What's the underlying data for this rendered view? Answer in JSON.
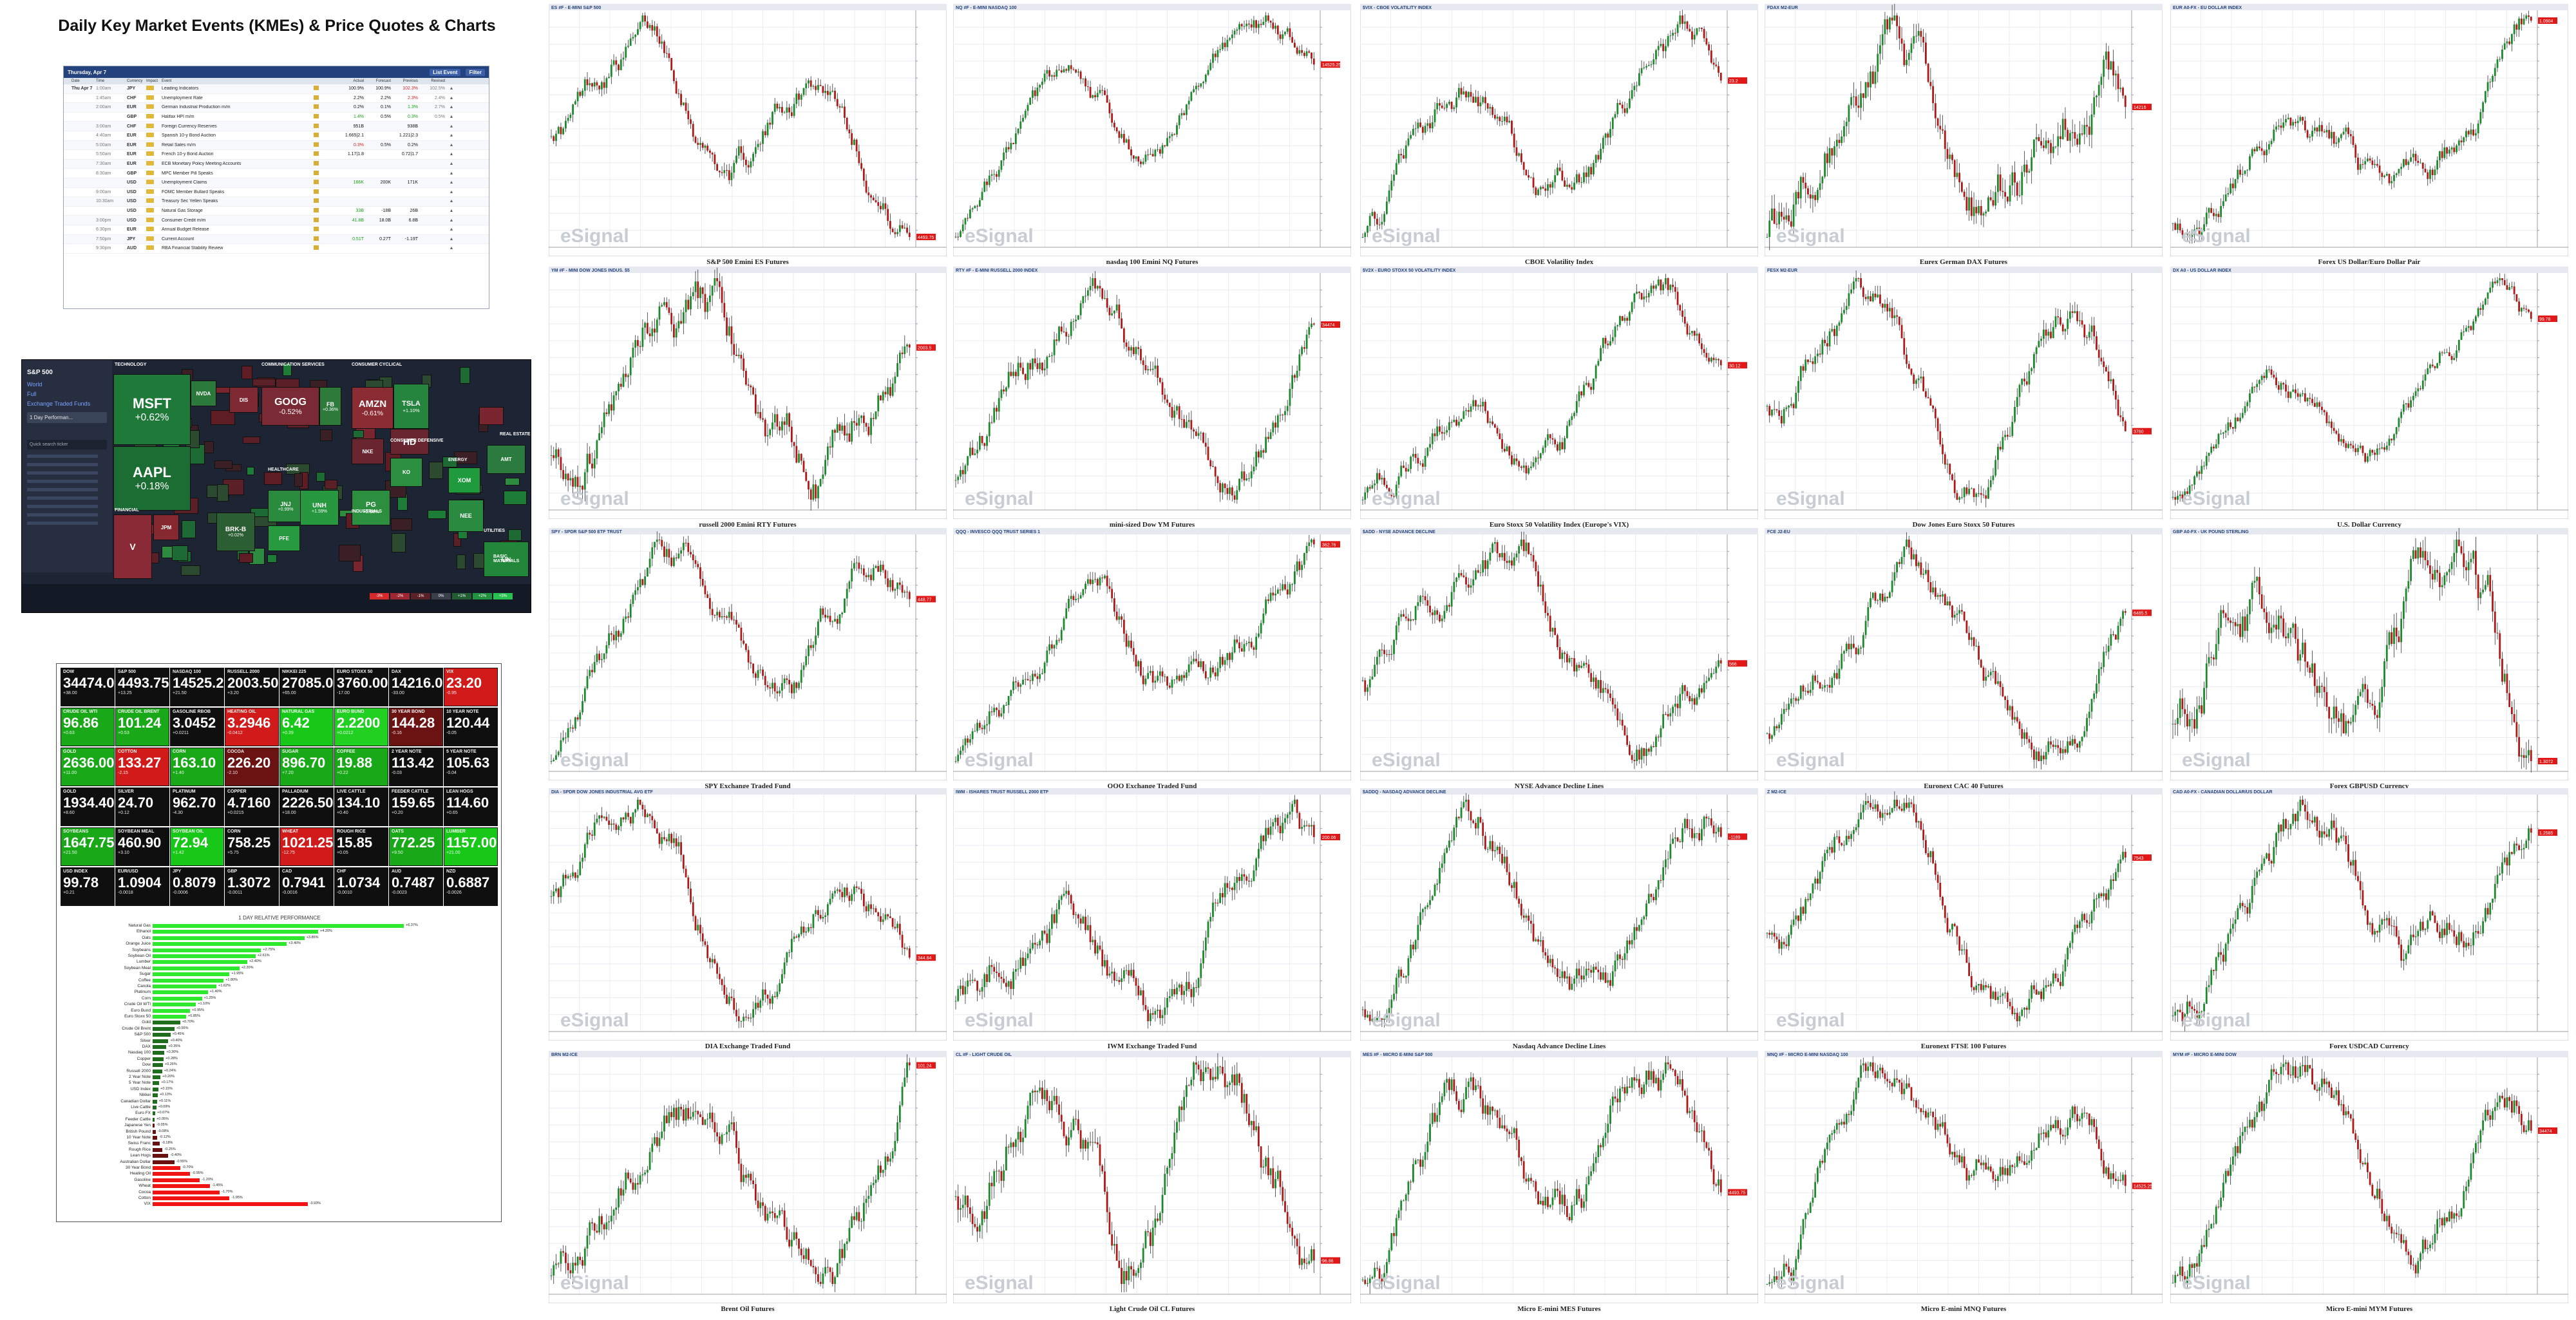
{
  "page": {
    "title": "Daily Key Market Events (KMEs) & Price Quotes & Charts"
  },
  "calendar": {
    "header_date": "Thursday, Apr 7",
    "header_buttons": [
      "List Event",
      "Filter"
    ],
    "columns": [
      "Date",
      "Time",
      "Currency",
      "Impact",
      "Event",
      "",
      "Actual",
      "Forecast",
      "Previous",
      "Revised"
    ],
    "day_label": "Thu Apr 7",
    "rows": [
      {
        "time": "1:00am",
        "cur": "JPY",
        "event": "Leading Indicators",
        "act": "100.9%",
        "fc": "100.9%",
        "prev": "102.3%",
        "rev": "102.5%",
        "act_c": "",
        "prev_c": "neg"
      },
      {
        "time": "1:45am",
        "cur": "CHF",
        "event": "Unemployment Rate",
        "act": "2.2%",
        "fc": "2.2%",
        "prev": "2.3%",
        "rev": "2.4%",
        "act_c": "",
        "prev_c": "neg"
      },
      {
        "time": "2:00am",
        "cur": "EUR",
        "event": "German Industrial Production m/m",
        "act": "0.2%",
        "fc": "0.1%",
        "prev": "1.3%",
        "rev": "2.7%",
        "act_c": "",
        "prev_c": "pos"
      },
      {
        "time": "",
        "cur": "GBP",
        "event": "Halifax HPI m/m",
        "act": "1.4%",
        "fc": "0.5%",
        "prev": "0.3%",
        "rev": "0.5%",
        "act_c": "pos",
        "prev_c": "pos"
      },
      {
        "time": "3:00am",
        "cur": "CHF",
        "event": "Foreign Currency Reserves",
        "act": "951B",
        "fc": "",
        "prev": "938B",
        "rev": "",
        "act_c": "",
        "prev_c": ""
      },
      {
        "time": "4:40am",
        "cur": "EUR",
        "event": "Spanish 10-y Bond Auction",
        "act": "1.665|2.1",
        "fc": "",
        "prev": "1.221|2.3",
        "rev": "",
        "act_c": "",
        "prev_c": ""
      },
      {
        "time": "5:00am",
        "cur": "EUR",
        "event": "Retail Sales m/m",
        "act": "0.3%",
        "fc": "0.5%",
        "prev": "0.2%",
        "rev": "",
        "act_c": "neg",
        "prev_c": ""
      },
      {
        "time": "5:50am",
        "cur": "EUR",
        "event": "French 10-y Bond Auction",
        "act": "1.17|1.8",
        "fc": "",
        "prev": "0.72|1.7",
        "rev": "",
        "act_c": "",
        "prev_c": ""
      },
      {
        "time": "7:30am",
        "cur": "EUR",
        "event": "ECB Monetary Policy Meeting Accounts",
        "act": "",
        "fc": "",
        "prev": "",
        "rev": "",
        "act_c": "",
        "prev_c": ""
      },
      {
        "time": "8:30am",
        "cur": "GBP",
        "event": "MPC Member Pill Speaks",
        "act": "",
        "fc": "",
        "prev": "",
        "rev": "",
        "act_c": "",
        "prev_c": ""
      },
      {
        "time": "",
        "cur": "USD",
        "event": "Unemployment Claims",
        "act": "166K",
        "fc": "200K",
        "prev": "171K",
        "rev": "",
        "act_c": "pos",
        "prev_c": ""
      },
      {
        "time": "9:00am",
        "cur": "USD",
        "event": "FOMC Member Bullard Speaks",
        "act": "",
        "fc": "",
        "prev": "",
        "rev": "",
        "act_c": "",
        "prev_c": ""
      },
      {
        "time": "10:30am",
        "cur": "USD",
        "event": "Treasury Sec Yellen Speaks",
        "act": "",
        "fc": "",
        "prev": "",
        "rev": "",
        "act_c": "",
        "prev_c": ""
      },
      {
        "time": "",
        "cur": "USD",
        "event": "Natural Gas Storage",
        "act": "33B",
        "fc": "-18B",
        "prev": "26B",
        "rev": "",
        "act_c": "pos",
        "prev_c": ""
      },
      {
        "time": "3:00pm",
        "cur": "USD",
        "event": "Consumer Credit m/m",
        "act": "41.8B",
        "fc": "18.0B",
        "prev": "6.8B",
        "rev": "",
        "act_c": "pos",
        "prev_c": ""
      },
      {
        "time": "6:30pm",
        "cur": "EUR",
        "event": "Annual Budget Release",
        "act": "",
        "fc": "",
        "prev": "",
        "rev": "",
        "act_c": "",
        "prev_c": ""
      },
      {
        "time": "7:50pm",
        "cur": "JPY",
        "event": "Current Account",
        "act": "0.51T",
        "fc": "0.27T",
        "prev": "-1.19T",
        "rev": "",
        "act_c": "pos",
        "prev_c": ""
      },
      {
        "time": "9:30pm",
        "cur": "AUD",
        "event": "RBA Financial Stability Review",
        "act": "",
        "fc": "",
        "prev": "",
        "rev": "",
        "act_c": "",
        "prev_c": ""
      }
    ]
  },
  "heatmap": {
    "sidebar_title": "S&P 500",
    "sidebar_links": [
      "World",
      "Full",
      "Exchange Traded Funds"
    ],
    "sidebar_select": "1 Day Performan...",
    "search_placeholder": "Quick search ticker",
    "sectors": [
      "TECHNOLOGY",
      "COMMUNICATION SERVICES",
      "CONSUMER CYCLICAL",
      "FINANCIAL",
      "HEALTHCARE",
      "CONSUMER DEFENSIVE",
      "INDUSTRIALS",
      "REAL ESTATE",
      "ENERGY",
      "UTILITIES",
      "BASIC MATERIALS"
    ],
    "tiles": [
      {
        "sym": "MSFT",
        "chg": "+0.62%"
      },
      {
        "sym": "AAPL",
        "chg": "+0.18%"
      },
      {
        "sym": "GOOG",
        "chg": "-0.52%"
      },
      {
        "sym": "FB",
        "chg": "+0.36%"
      },
      {
        "sym": "AMZN",
        "chg": "-0.61%"
      },
      {
        "sym": "TSLA",
        "chg": "+1.10%"
      },
      {
        "sym": "HD",
        "chg": ""
      },
      {
        "sym": "V",
        "chg": ""
      },
      {
        "sym": "BRK-B",
        "chg": "+0.02%"
      },
      {
        "sym": "JNJ",
        "chg": "+0.99%"
      },
      {
        "sym": "UNH",
        "chg": "+1.59%"
      },
      {
        "sym": "PG",
        "chg": "+0.68%"
      },
      {
        "sym": "XOM",
        "chg": ""
      },
      {
        "sym": "NEE",
        "chg": ""
      },
      {
        "sym": "LIN",
        "chg": ""
      },
      {
        "sym": "JPM",
        "chg": ""
      },
      {
        "sym": "NVDA",
        "chg": ""
      },
      {
        "sym": "DIS",
        "chg": ""
      },
      {
        "sym": "NKE",
        "chg": ""
      },
      {
        "sym": "KO",
        "chg": ""
      },
      {
        "sym": "PFE",
        "chg": ""
      },
      {
        "sym": "AMT",
        "chg": ""
      }
    ],
    "legend": [
      "-3%",
      "-2%",
      "-1%",
      "0%",
      "+1%",
      "+2%",
      "+3%"
    ]
  },
  "board": {
    "rows": [
      [
        {
          "name": "DOW",
          "val": "34474.00",
          "chg": "+38.00",
          "color": "#0f0f0f"
        },
        {
          "name": "S&P 500",
          "val": "4493.75",
          "chg": "+13.25",
          "color": "#0f0f0f"
        },
        {
          "name": "NASDAQ 100",
          "val": "14525.25",
          "chg": "+21.50",
          "color": "#0f0f0f"
        },
        {
          "name": "RUSSELL 2000",
          "val": "2003.50",
          "chg": "+3.20",
          "color": "#0f0f0f"
        },
        {
          "name": "NIKKEI 225",
          "val": "27085.00",
          "chg": "+65.00",
          "color": "#0f0f0f"
        },
        {
          "name": "EURO STOXX 50",
          "val": "3760.00",
          "chg": "-17.00",
          "color": "#0f0f0f"
        },
        {
          "name": "DAX",
          "val": "14216.00",
          "chg": "-33.00",
          "color": "#0f0f0f"
        },
        {
          "name": "VIX",
          "val": "23.20",
          "chg": "-0.95",
          "color": "#d11a1a"
        }
      ],
      [
        {
          "name": "CRUDE OIL WTI",
          "val": "96.86",
          "chg": "+0.63",
          "color": "#18a818"
        },
        {
          "name": "CRUDE OIL BRENT",
          "val": "101.24",
          "chg": "+0.53",
          "color": "#18a818"
        },
        {
          "name": "GASOLINE RBOB",
          "val": "3.0452",
          "chg": "+0.0211",
          "color": "#0f0f0f"
        },
        {
          "name": "HEATING OIL",
          "val": "3.2946",
          "chg": "-0.0412",
          "color": "#d11a1a"
        },
        {
          "name": "NATURAL GAS",
          "val": "6.42",
          "chg": "+0.39",
          "color": "#18c818"
        },
        {
          "name": "EURO BUND",
          "val": "2.2200",
          "chg": "+0.0212",
          "color": "#22d022"
        },
        {
          "name": "30 YEAR BOND",
          "val": "144.28",
          "chg": "-0.16",
          "color": "#6b1212"
        },
        {
          "name": "10 YEAR NOTE",
          "val": "120.44",
          "chg": "-0.05",
          "color": "#0f0f0f"
        }
      ],
      [
        {
          "name": "GOLD",
          "val": "2636.00",
          "chg": "+11.00",
          "color": "#18a818"
        },
        {
          "name": "COTTON",
          "val": "133.27",
          "chg": "-2.15",
          "color": "#d11a1a"
        },
        {
          "name": "CORN",
          "val": "163.10",
          "chg": "+1.40",
          "color": "#18a818"
        },
        {
          "name": "COCOA",
          "val": "226.20",
          "chg": "-2.10",
          "color": "#6b1212"
        },
        {
          "name": "SUGAR",
          "val": "896.70",
          "chg": "+7.20",
          "color": "#18a818"
        },
        {
          "name": "COFFEE",
          "val": "19.88",
          "chg": "+0.22",
          "color": "#18a818"
        },
        {
          "name": "2 YEAR NOTE",
          "val": "113.42",
          "chg": "-0.03",
          "color": "#0f0f0f"
        },
        {
          "name": "5 YEAR NOTE",
          "val": "105.63",
          "chg": "-0.04",
          "color": "#0f0f0f"
        }
      ],
      [
        {
          "name": "GOLD",
          "val": "1934.40",
          "chg": "+8.60",
          "color": "#0f0f0f"
        },
        {
          "name": "SILVER",
          "val": "24.70",
          "chg": "+0.12",
          "color": "#0f0f0f"
        },
        {
          "name": "PLATINUM",
          "val": "962.70",
          "chg": "-4.30",
          "color": "#0f0f0f"
        },
        {
          "name": "COPPER",
          "val": "4.7160",
          "chg": "+0.0215",
          "color": "#0f0f0f"
        },
        {
          "name": "PALLADIUM",
          "val": "2226.50",
          "chg": "+18.00",
          "color": "#0f0f0f"
        },
        {
          "name": "LIVE CATTLE",
          "val": "134.10",
          "chg": "+0.40",
          "color": "#0f0f0f"
        },
        {
          "name": "FEEDER CATTLE",
          "val": "159.65",
          "chg": "+0.20",
          "color": "#0f0f0f"
        },
        {
          "name": "LEAN HOGS",
          "val": "114.60",
          "chg": "+0.65",
          "color": "#0f0f0f"
        }
      ],
      [
        {
          "name": "SOYBEANS",
          "val": "1647.75",
          "chg": "+21.50",
          "color": "#18a818"
        },
        {
          "name": "SOYBEAN MEAL",
          "val": "460.90",
          "chg": "+3.10",
          "color": "#0f0f0f"
        },
        {
          "name": "SOYBEAN OIL",
          "val": "72.94",
          "chg": "+1.42",
          "color": "#18c818"
        },
        {
          "name": "CORN",
          "val": "758.25",
          "chg": "+5.75",
          "color": "#0f0f0f"
        },
        {
          "name": "WHEAT",
          "val": "1021.25",
          "chg": "-12.75",
          "color": "#d11a1a"
        },
        {
          "name": "ROUGH RICE",
          "val": "15.85",
          "chg": "+0.05",
          "color": "#0f0f0f"
        },
        {
          "name": "OATS",
          "val": "772.25",
          "chg": "+9.50",
          "color": "#18a818"
        },
        {
          "name": "LUMBER",
          "val": "1157.00",
          "chg": "+21.00",
          "color": "#18c818"
        }
      ],
      [
        {
          "name": "USD INDEX",
          "val": "99.78",
          "chg": "+0.21",
          "color": "#0f0f0f"
        },
        {
          "name": "EUR/USD",
          "val": "1.0904",
          "chg": "-0.0018",
          "color": "#0f0f0f"
        },
        {
          "name": "JPY",
          "val": "0.8079",
          "chg": "-0.0006",
          "color": "#0f0f0f"
        },
        {
          "name": "GBP",
          "val": "1.3072",
          "chg": "-0.0011",
          "color": "#0f0f0f"
        },
        {
          "name": "CAD",
          "val": "0.7941",
          "chg": "-0.0016",
          "color": "#0f0f0f"
        },
        {
          "name": "CHF",
          "val": "1.0734",
          "chg": "-0.0010",
          "color": "#0f0f0f"
        },
        {
          "name": "AUD",
          "val": "0.7487",
          "chg": "-0.0023",
          "color": "#0f0f0f"
        },
        {
          "name": "NZD",
          "val": "0.6887",
          "chg": "-0.0026",
          "color": "#0f0f0f"
        }
      ]
    ],
    "perf_title": "1 DAY RELATIVE PERFORMANCE",
    "perf": [
      {
        "l": "Natural Gas",
        "v": 6.37
      },
      {
        "l": "Ethanol",
        "v": 4.2
      },
      {
        "l": "Oats",
        "v": 3.85
      },
      {
        "l": "Orange Juice",
        "v": 3.4
      },
      {
        "l": "Soybeans",
        "v": 2.75
      },
      {
        "l": "Soybean Oil",
        "v": 2.61
      },
      {
        "l": "Lumber",
        "v": 2.4
      },
      {
        "l": "Soybean Meal",
        "v": 2.2
      },
      {
        "l": "Sugar",
        "v": 1.95
      },
      {
        "l": "Coffee",
        "v": 1.8
      },
      {
        "l": "Canola",
        "v": 1.62
      },
      {
        "l": "Platinum",
        "v": 1.4
      },
      {
        "l": "Corn",
        "v": 1.25
      },
      {
        "l": "Crude Oil WTI",
        "v": 1.1
      },
      {
        "l": "Euro Bund",
        "v": 0.95
      },
      {
        "l": "Euro Stoxx 50",
        "v": 0.85
      },
      {
        "l": "Gold",
        "v": 0.7
      },
      {
        "l": "Crude Oil Brent",
        "v": 0.55
      },
      {
        "l": "S&P 500",
        "v": 0.45
      },
      {
        "l": "Silver",
        "v": 0.4
      },
      {
        "l": "DAX",
        "v": 0.35
      },
      {
        "l": "Nasdaq 100",
        "v": 0.3
      },
      {
        "l": "Copper",
        "v": 0.28
      },
      {
        "l": "Dow",
        "v": 0.26
      },
      {
        "l": "Russell 2000",
        "v": 0.24
      },
      {
        "l": "2 Year Note",
        "v": 0.2
      },
      {
        "l": "5 Year Note",
        "v": 0.17
      },
      {
        "l": "USD Index",
        "v": 0.15
      },
      {
        "l": "Nikkei",
        "v": 0.13
      },
      {
        "l": "Canadian Dollar",
        "v": 0.11
      },
      {
        "l": "Live Cattle",
        "v": 0.09
      },
      {
        "l": "Euro FX",
        "v": 0.07
      },
      {
        "l": "Feeder Cattle",
        "v": 0.05
      },
      {
        "l": "Japanese Yen",
        "v": -0.05
      },
      {
        "l": "British Pound",
        "v": -0.08
      },
      {
        "l": "10 Year Note",
        "v": -0.12
      },
      {
        "l": "Swiss Franc",
        "v": -0.18
      },
      {
        "l": "Rough Rice",
        "v": -0.25
      },
      {
        "l": "Lean Hogs",
        "v": -0.4
      },
      {
        "l": "Australian Dollar",
        "v": -0.55
      },
      {
        "l": "30 Year Bond",
        "v": -0.7
      },
      {
        "l": "Heating Oil",
        "v": -0.95
      },
      {
        "l": "Gasoline",
        "v": -1.2
      },
      {
        "l": "Wheat",
        "v": -1.45
      },
      {
        "l": "Cocoa",
        "v": -1.7
      },
      {
        "l": "Cotton",
        "v": -1.95
      },
      {
        "l": "VIX",
        "v": -3.93
      }
    ]
  },
  "charts": {
    "watermark": "eSignal",
    "items": [
      {
        "label": "S&P 500 Emini ES Futures",
        "head": "ES #F - E-MINI S&P 500",
        "p": 4493.75
      },
      {
        "label": "nasdaq 100 Emini NQ Futures",
        "head": "NQ #F - E-MINI NASDAQ 100",
        "p": 14525.25
      },
      {
        "label": "CBOE Volatility Index",
        "head": "$VIX - CBOE VOLATILITY INDEX",
        "p": 23.2
      },
      {
        "label": "Eurex German DAX Futures",
        "head": "FDAX M2-EUR",
        "p": 14216.0
      },
      {
        "label": "Forex US Dollar/Euro Dollar Pair",
        "head": "EUR A0-FX - EU DOLLAR INDEX",
        "p": 1.0904
      },
      {
        "label": "russell 2000 Emini RTY Futures",
        "head": "YM #F - MINI DOW JONES INDUS. $5",
        "p": 2003.5
      },
      {
        "label": "mini-sized Dow YM Futures",
        "head": "RTY #F - E-MINI RUSSELL 2000 INDEX",
        "p": 34474.0
      },
      {
        "label": "Euro Stoxx 50 Volatility Index (Europe's VIX)",
        "head": "$V2X - EURO STOXX 50 VOLATILITY INDEX",
        "p": 30.12
      },
      {
        "label": "Dow Jones Euro Stoxx 50 Futures",
        "head": "FESX M2-EUR",
        "p": 3760.0
      },
      {
        "label": "U.S. Dollar Currency",
        "head": "DX A0 - US DOLLAR INDEX",
        "p": 99.78
      },
      {
        "label": "SPY Exchange Traded Fund",
        "head": "SPY - SPDR S&P 500 ETF TRUST",
        "p": 448.77
      },
      {
        "label": "QQQ Exchange Traded Fund",
        "head": "QQQ - INVESCO QQQ TRUST SERIES 1",
        "p": 362.76
      },
      {
        "label": "NYSE Advance Decline Lines",
        "head": "$ADD - NYSE ADVANCE DECLINE",
        "p": 566
      },
      {
        "label": "Euronext CAC 40 Futures",
        "head": "FCE J2-EU",
        "p": 6485.5
      },
      {
        "label": "Forex GBPUSD Currency",
        "head": "GBP A0-FX - UK POUND STERLING",
        "p": 1.3072
      },
      {
        "label": "DIA Exchange Traded Fund",
        "head": "DIA - SPDR DOW JONES INDUSTRIAL AVG ETF",
        "p": 344.84
      },
      {
        "label": "IWM Exchange Traded Fund",
        "head": "IWM - ISHARES TRUST RUSSELL 2000 ETF",
        "p": 200.06
      },
      {
        "label": "Nasdaq Advance Decline Lines",
        "head": "$ADDQ - NASDAQ ADVANCE DECLINE",
        "p": -1189
      },
      {
        "label": "Euronext FTSE 100 Futures",
        "head": "Z M2-ICE",
        "p": 7543.0
      },
      {
        "label": "Forex USDCAD Currency",
        "head": "CAD A0-FX - CANADIAN DOLLAR/US DOLLAR",
        "p": 1.2585
      },
      {
        "label": "Brent Oil Futures",
        "head": "BRN M2-ICE",
        "p": 101.24
      },
      {
        "label": "Light Crude Oil CL Futures",
        "head": "CL #F - LIGHT CRUDE OIL",
        "p": 96.86
      },
      {
        "label": "Micro E-mini MES Futures",
        "head": "MES #F - MICRO E-MINI S&P 500",
        "p": 4493.75
      },
      {
        "label": "Micro E-mini MNQ Futures",
        "head": "MNQ #F - MICRO E-MINI NASDAQ 100",
        "p": 14525.25
      },
      {
        "label": "Micro E-mini MYM Futures",
        "head": "MYM #F - MICRO E-MINI DOW",
        "p": 34474.0
      }
    ]
  }
}
